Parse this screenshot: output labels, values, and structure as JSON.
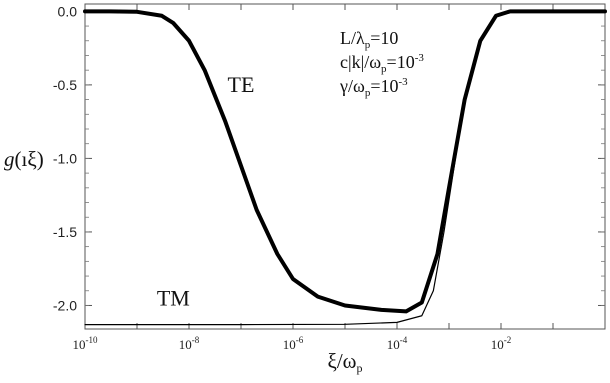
{
  "chart_data": {
    "type": "line",
    "title": "",
    "xlabel": {
      "main": "ξ/ω",
      "sub": "p"
    },
    "ylabel": {
      "italic": "g",
      "rest": "(ıξ)"
    },
    "x_scale": "log",
    "xlim": [
      1e-10,
      1
    ],
    "ylim": [
      -2.16,
      0.05
    ],
    "x_ticks": [
      {
        "value": 1e-10,
        "base": "10",
        "exp": "-10"
      },
      {
        "value": 1e-08,
        "base": "10",
        "exp": "-8"
      },
      {
        "value": 1e-06,
        "base": "10",
        "exp": "-6"
      },
      {
        "value": 0.0001,
        "base": "10",
        "exp": "-4"
      },
      {
        "value": 0.01,
        "base": "10",
        "exp": "-2"
      }
    ],
    "y_ticks": [
      {
        "value": 0.0,
        "label": "0.0"
      },
      {
        "value": -0.5,
        "label": "-0.5"
      },
      {
        "value": -1.0,
        "label": "-1.0"
      },
      {
        "value": -1.5,
        "label": "-1.5"
      },
      {
        "value": -2.0,
        "label": "-2.0"
      }
    ],
    "grid": false,
    "series": [
      {
        "name": "TE",
        "style": "thick",
        "color": "#000000",
        "points": [
          [
            1e-10,
            0.0
          ],
          [
            3e-10,
            0.0
          ],
          [
            1e-09,
            -0.003
          ],
          [
            3e-09,
            -0.03
          ],
          [
            5e-09,
            -0.08
          ],
          [
            1e-08,
            -0.2
          ],
          [
            2e-08,
            -0.4
          ],
          [
            5e-08,
            -0.75
          ],
          [
            1e-07,
            -1.05
          ],
          [
            2e-07,
            -1.35
          ],
          [
            5e-07,
            -1.65
          ],
          [
            1e-06,
            -1.82
          ],
          [
            3e-06,
            -1.94
          ],
          [
            1e-05,
            -2.0
          ],
          [
            5e-05,
            -2.03
          ],
          [
            0.00015,
            -2.04
          ],
          [
            0.0003,
            -1.98
          ],
          [
            0.0006,
            -1.65
          ],
          [
            0.001,
            -1.2
          ],
          [
            0.002,
            -0.6
          ],
          [
            0.004,
            -0.2
          ],
          [
            0.008,
            -0.03
          ],
          [
            0.015,
            0.0
          ],
          [
            1,
            0.0
          ]
        ]
      },
      {
        "name": "TM",
        "style": "thin",
        "color": "#000000",
        "points": [
          [
            1e-10,
            -2.13
          ],
          [
            1e-07,
            -2.13
          ],
          [
            1e-05,
            -2.128
          ],
          [
            0.0001,
            -2.115
          ],
          [
            0.0003,
            -2.07
          ],
          [
            0.0005,
            -1.9
          ],
          [
            0.0008,
            -1.5
          ],
          [
            0.0012,
            -1.1
          ],
          [
            0.002,
            -0.6
          ],
          [
            0.004,
            -0.2
          ],
          [
            0.008,
            -0.03
          ],
          [
            0.015,
            0.0
          ],
          [
            1,
            0.0
          ]
        ]
      }
    ],
    "curve_labels": [
      {
        "text": "TE",
        "x": 1e-07,
        "y": -0.55
      },
      {
        "text": "TM",
        "x": 5e-09,
        "y": -2.0
      }
    ],
    "parameters": [
      {
        "pre": "L/λ",
        "sub": "p",
        "post": "=10",
        "sup": ""
      },
      {
        "pre": "c|k|/ω",
        "sub": "p",
        "post": "=10",
        "sup": "-3"
      },
      {
        "pre": "γ/ω",
        "sub": "p",
        "post": "=10",
        "sup": "-3"
      }
    ]
  }
}
